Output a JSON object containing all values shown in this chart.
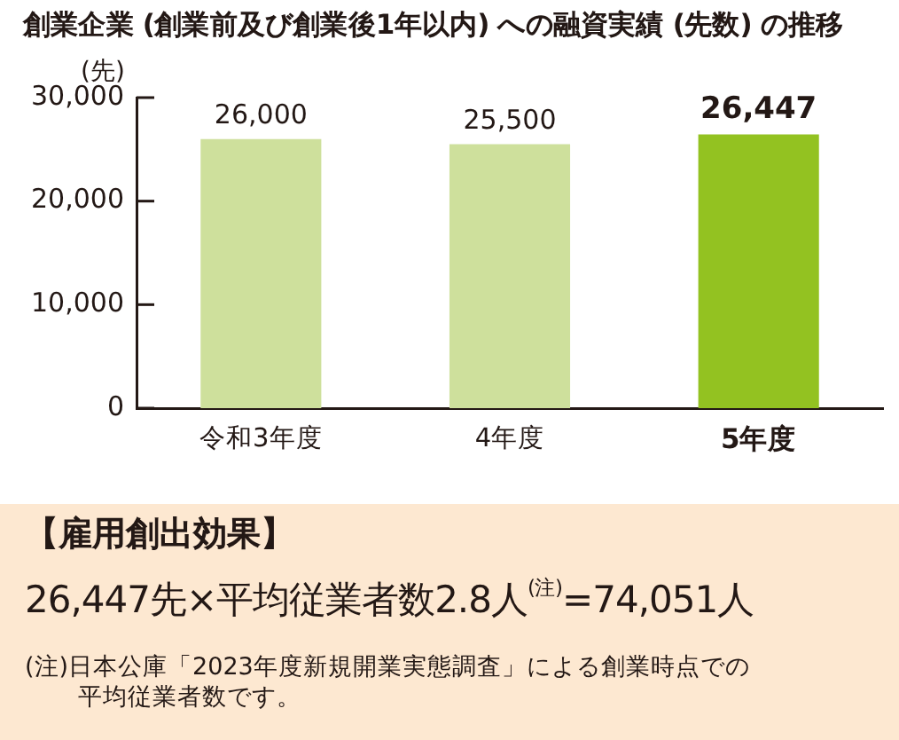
{
  "chart_data": {
    "type": "bar",
    "title": "創業企業 (創業前及び創業後1年以内) への融資実績 (先数) の推移",
    "ylabel": "(先)",
    "categories": [
      "令和3年度",
      "4年度",
      "5年度"
    ],
    "values": [
      26000,
      25500,
      26447
    ],
    "colors": [
      "#cee09c",
      "#cee09c",
      "#93c221"
    ],
    "value_labels": [
      "26,000",
      "25,500",
      "26,447"
    ],
    "ylim": [
      0,
      30000
    ],
    "yticks": [
      {
        "value": 0,
        "label": "0"
      },
      {
        "value": 10000,
        "label": "10,000"
      },
      {
        "value": 20000,
        "label": "20,000"
      },
      {
        "value": 30000,
        "label": "30,000"
      }
    ],
    "annotations": [
      "【雇用創出効果】",
      "26,447先×平均従業者数2.8人$^{(注)}$=74,051人",
      "(注)日本公庫「2023年度新規開業実態調査」による創業時点での平均従業者数です。"
    ]
  }
}
